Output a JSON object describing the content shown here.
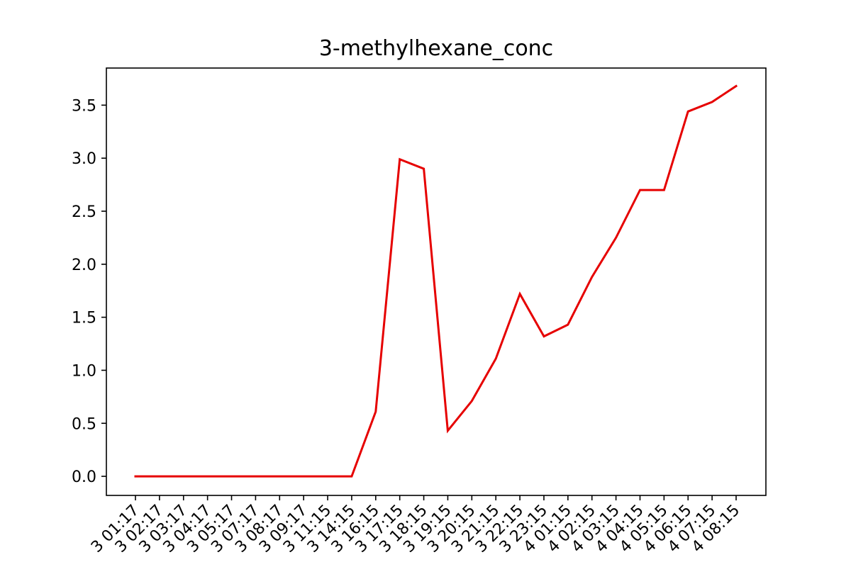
{
  "chart_data": {
    "type": "line",
    "title": "3-methylhexane_conc",
    "xlabel": "",
    "ylabel": "",
    "grid": false,
    "legend": "none",
    "ylim": [
      -0.18,
      3.85
    ],
    "yticks": [
      "0.0",
      "0.5",
      "1.0",
      "1.5",
      "2.0",
      "2.5",
      "3.0",
      "3.5"
    ],
    "x": [
      "3 01:17",
      "3 02:17",
      "3 03:17",
      "3 04:17",
      "3 05:17",
      "3 07:17",
      "3 08:17",
      "3 09:17",
      "3 11:15",
      "3 14:15",
      "3 16:15",
      "3 17:15",
      "3 18:15",
      "3 19:15",
      "3 20:15",
      "3 21:15",
      "3 22:15",
      "3 23:15",
      "4 01:15",
      "4 02:15",
      "4 03:15",
      "4 04:15",
      "4 05:15",
      "4 06:15",
      "4 07:15",
      "4 08:15"
    ],
    "series": [
      {
        "color": "#e60000",
        "values": [
          0.0,
          0.0,
          0.0,
          0.0,
          0.0,
          0.0,
          0.0,
          0.0,
          0.0,
          0.0,
          0.61,
          2.99,
          2.9,
          0.43,
          0.71,
          1.11,
          1.72,
          1.32,
          1.43,
          1.88,
          2.25,
          2.7,
          2.7,
          3.44,
          3.53,
          3.68
        ]
      }
    ]
  }
}
